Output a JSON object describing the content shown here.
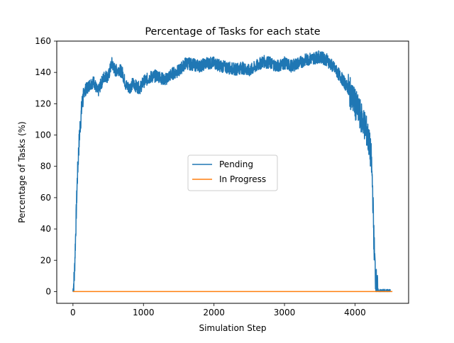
{
  "chart_data": {
    "type": "line",
    "title": "Percentage of Tasks for each state",
    "xlabel": "Simulation Step",
    "ylabel": "Percentage of Tasks (%)",
    "xlim": [
      -230,
      4760
    ],
    "ylim": [
      -7.5,
      160
    ],
    "xticks": [
      0,
      1000,
      2000,
      3000,
      4000
    ],
    "yticks": [
      0,
      20,
      40,
      60,
      80,
      100,
      120,
      140,
      160
    ],
    "grid": false,
    "legend_position": "center",
    "series": [
      {
        "name": "Pending",
        "color": "#1f77b4",
        "noisy": true,
        "x": [
          0,
          20,
          40,
          60,
          80,
          100,
          130,
          160,
          200,
          250,
          300,
          350,
          400,
          450,
          500,
          550,
          600,
          650,
          700,
          750,
          800,
          850,
          900,
          950,
          1000,
          1100,
          1200,
          1300,
          1400,
          1500,
          1600,
          1700,
          1800,
          1900,
          2000,
          2100,
          2200,
          2300,
          2400,
          2500,
          2600,
          2700,
          2800,
          2900,
          3000,
          3100,
          3200,
          3300,
          3400,
          3500,
          3600,
          3700,
          3800,
          3900,
          4000,
          4050,
          4100,
          4150,
          4200,
          4230,
          4250,
          4270,
          4290,
          4310,
          4330,
          4350,
          4380,
          4420,
          4500
        ],
        "y": [
          0,
          10,
          40,
          70,
          90,
          105,
          120,
          128,
          130,
          133,
          134,
          127,
          133,
          138,
          137,
          146,
          141,
          142,
          140,
          132,
          130,
          133,
          131,
          130,
          134,
          137,
          138,
          135,
          139,
          141,
          146,
          145,
          144,
          146,
          146,
          144,
          143,
          142,
          143,
          141,
          144,
          147,
          146,
          144,
          146,
          144,
          146,
          148,
          149,
          150,
          148,
          143,
          137,
          130,
          120,
          115,
          110,
          105,
          95,
          85,
          65,
          30,
          10,
          2,
          0,
          0,
          0,
          0,
          0
        ]
      },
      {
        "name": "In Progress",
        "color": "#ff7f0e",
        "noisy": false,
        "x": [
          0,
          4530
        ],
        "y": [
          0,
          0
        ]
      }
    ]
  }
}
